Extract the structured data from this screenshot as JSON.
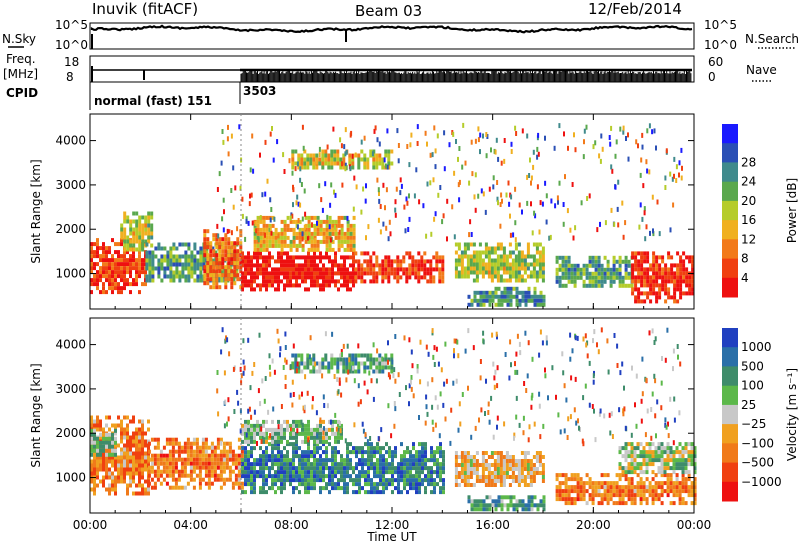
{
  "header": {
    "station": "Inuvik (fitACF)",
    "beam": "Beam 03",
    "date": "12/Feb/2014"
  },
  "strips": {
    "nsky_label": "N.Sky",
    "nsky_ticks": [
      "10^5",
      "10^0"
    ],
    "nsearch_label": "N.Search",
    "nsearch_ticks": [
      "10^5",
      "10^0"
    ],
    "freq_label_1": "Freq.",
    "freq_label_2": "[MHz]",
    "freq_ticks": [
      "18",
      "8"
    ],
    "nave_label": "Nave",
    "nave_ticks": [
      "60",
      "0"
    ],
    "cpid_label": "CPID",
    "cpid_segments": [
      {
        "label": "normal (fast) 151",
        "start_hour": 0
      },
      {
        "label": "3503",
        "start_hour": 6
      }
    ]
  },
  "chart_data": [
    {
      "type": "heatmap",
      "name": "power",
      "ylabel": "Slant Range [km]",
      "xlabel": "",
      "x_ticks": [
        "00:00",
        "04:00",
        "08:00",
        "12:00",
        "16:00",
        "20:00",
        "00:00"
      ],
      "y_ticks": [
        1000,
        2000,
        3000,
        4000
      ],
      "ylim": [
        200,
        4600
      ],
      "xlim_hours": [
        0,
        24
      ],
      "colorbar": {
        "label": "Power [dB]",
        "ticks": [
          "4",
          "8",
          "12",
          "16",
          "20",
          "24",
          "28"
        ],
        "colors": [
          "#1a1aff",
          "#2a4fb5",
          "#3f8a8c",
          "#5aa84d",
          "#b5cc2a",
          "#f0b020",
          "#f27a1a",
          "#f04010",
          "#ee1010"
        ]
      },
      "regions": [
        {
          "t0": 0.0,
          "t1": 2.2,
          "r0": 600,
          "r1": 1800,
          "level": 0.85
        },
        {
          "t0": 1.2,
          "t1": 2.5,
          "r0": 1500,
          "r1": 2400,
          "level": 0.5
        },
        {
          "t0": 2.2,
          "t1": 5.8,
          "r0": 800,
          "r1": 1700,
          "level": 0.35
        },
        {
          "t0": 4.5,
          "t1": 6.0,
          "r0": 700,
          "r1": 2000,
          "level": 0.75
        },
        {
          "t0": 6.0,
          "t1": 10.5,
          "r0": 650,
          "r1": 1500,
          "level": 0.95
        },
        {
          "t0": 6.5,
          "t1": 10.5,
          "r0": 1500,
          "r1": 2300,
          "level": 0.6
        },
        {
          "t0": 10.5,
          "t1": 14.0,
          "r0": 800,
          "r1": 1500,
          "level": 0.85
        },
        {
          "t0": 14.5,
          "t1": 18.0,
          "r0": 800,
          "r1": 1700,
          "level": 0.5
        },
        {
          "t0": 15.0,
          "t1": 18.0,
          "r0": 300,
          "r1": 700,
          "level": 0.3
        },
        {
          "t0": 18.5,
          "t1": 21.5,
          "r0": 700,
          "r1": 1400,
          "level": 0.35
        },
        {
          "t0": 21.5,
          "t1": 24.0,
          "r0": 400,
          "r1": 1500,
          "level": 0.9
        },
        {
          "t0": 8.0,
          "t1": 12.0,
          "r0": 3400,
          "r1": 3800,
          "level": 0.55
        }
      ]
    },
    {
      "type": "heatmap",
      "name": "velocity",
      "ylabel": "Slant Range [km]",
      "xlabel": "Time UT",
      "x_ticks": [
        "00:00",
        "04:00",
        "08:00",
        "12:00",
        "16:00",
        "20:00",
        "00:00"
      ],
      "y_ticks": [
        1000,
        2000,
        3000,
        4000
      ],
      "ylim": [
        200,
        4600
      ],
      "xlim_hours": [
        0,
        24
      ],
      "colorbar": {
        "label": "Velocity [m s⁻¹]",
        "ticks": [
          "1000",
          "500",
          "100",
          "25",
          "−25",
          "−100",
          "−500",
          "−1000"
        ],
        "colors": [
          "#2040c0",
          "#2a6fa8",
          "#3e8c6a",
          "#5cb84a",
          "#c8c8c8",
          "#f0a020",
          "#f07a1a",
          "#f04010",
          "#ee1010"
        ]
      },
      "regions": [
        {
          "t0": 0.0,
          "t1": 2.3,
          "r0": 600,
          "r1": 2400,
          "level": 0.7
        },
        {
          "t0": 2.3,
          "t1": 6.0,
          "r0": 800,
          "r1": 1900,
          "level": 0.72
        },
        {
          "t0": 0.0,
          "t1": 1.0,
          "r0": 1500,
          "r1": 2100,
          "level": 0.4
        },
        {
          "t0": 6.0,
          "t1": 14.0,
          "r0": 700,
          "r1": 1800,
          "level": 0.22
        },
        {
          "t0": 6.0,
          "t1": 10.0,
          "r0": 1800,
          "r1": 2300,
          "level": 0.4
        },
        {
          "t0": 14.5,
          "t1": 18.0,
          "r0": 800,
          "r1": 1600,
          "level": 0.6
        },
        {
          "t0": 15.0,
          "t1": 18.0,
          "r0": 300,
          "r1": 600,
          "level": 0.3
        },
        {
          "t0": 18.5,
          "t1": 24.0,
          "r0": 400,
          "r1": 1100,
          "level": 0.72
        },
        {
          "t0": 21.0,
          "t1": 24.0,
          "r0": 1100,
          "r1": 1800,
          "level": 0.45
        },
        {
          "t0": 8.0,
          "t1": 12.0,
          "r0": 3400,
          "r1": 3800,
          "level": 0.3
        }
      ]
    }
  ]
}
